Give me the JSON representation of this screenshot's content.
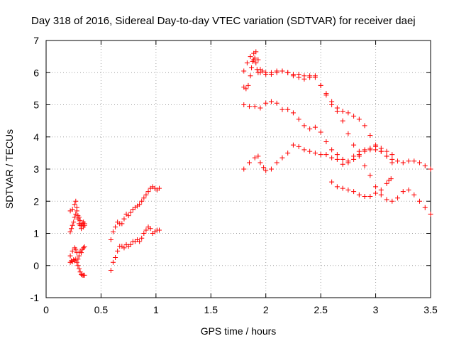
{
  "chart_data": {
    "type": "scatter",
    "title": "Day 318 of 2016, Sidereal Day-to-day VTEC variation (SDTVAR) for receiver daej",
    "xlabel": "GPS time / hours",
    "ylabel": "SDTVAR / TECUs",
    "xlim": [
      0,
      3.5
    ],
    "ylim": [
      -1,
      7
    ],
    "x_ticks": [
      "0",
      "0.5",
      "1",
      "1.5",
      "2",
      "2.5",
      "3",
      "3.5"
    ],
    "y_ticks": [
      "-1",
      "0",
      "1",
      "2",
      "3",
      "4",
      "5",
      "6",
      "7"
    ],
    "grid": true,
    "marker": "+",
    "color": "#ff0000",
    "series": [
      {
        "name": "segment-a1",
        "x": [
          0.22,
          0.24,
          0.26,
          0.27,
          0.28,
          0.29,
          0.3,
          0.31,
          0.32,
          0.33,
          0.34,
          0.35
        ],
        "y": [
          1.7,
          1.75,
          1.9,
          2.0,
          1.8,
          1.55,
          1.5,
          1.4,
          1.25,
          1.3,
          1.35,
          1.3
        ]
      },
      {
        "name": "segment-a2",
        "x": [
          0.22,
          0.23,
          0.24,
          0.25,
          0.26,
          0.27,
          0.28,
          0.29,
          0.3,
          0.31,
          0.32,
          0.33,
          0.34,
          0.35
        ],
        "y": [
          1.05,
          1.15,
          1.25,
          1.35,
          1.5,
          1.6,
          1.7,
          1.45,
          1.3,
          1.25,
          1.15,
          1.3,
          1.2,
          1.25
        ]
      },
      {
        "name": "segment-a3",
        "x": [
          0.22,
          0.24,
          0.26,
          0.27,
          0.28,
          0.29,
          0.3,
          0.31,
          0.32,
          0.33,
          0.34,
          0.35
        ],
        "y": [
          0.3,
          0.45,
          0.55,
          0.5,
          0.4,
          0.2,
          0.3,
          0.45,
          0.4,
          0.5,
          0.55,
          0.58
        ]
      },
      {
        "name": "segment-a4",
        "x": [
          0.22,
          0.23,
          0.24,
          0.25,
          0.26,
          0.27,
          0.28,
          0.29,
          0.3,
          0.31,
          0.32,
          0.33,
          0.34,
          0.35
        ],
        "y": [
          0.1,
          0.15,
          0.12,
          0.18,
          0.15,
          0.2,
          0.1,
          0.0,
          -0.1,
          -0.2,
          -0.28,
          -0.3,
          -0.3,
          -0.3
        ]
      },
      {
        "name": "segment-b1",
        "x": [
          0.59,
          0.61,
          0.63,
          0.65,
          0.67,
          0.69,
          0.71,
          0.73,
          0.75,
          0.77,
          0.79,
          0.81,
          0.83,
          0.85,
          0.87,
          0.89,
          0.91,
          0.93,
          0.95,
          0.97,
          0.99,
          1.01,
          1.03
        ],
        "y": [
          0.8,
          1.05,
          1.2,
          1.35,
          1.3,
          1.3,
          1.45,
          1.6,
          1.55,
          1.65,
          1.75,
          1.8,
          1.85,
          1.9,
          2.0,
          2.1,
          2.2,
          2.3,
          2.4,
          2.45,
          2.4,
          2.35,
          2.4
        ]
      },
      {
        "name": "segment-b2",
        "x": [
          0.59,
          0.61,
          0.63,
          0.65,
          0.67,
          0.69,
          0.71,
          0.73,
          0.75,
          0.77,
          0.79,
          0.81,
          0.83,
          0.85,
          0.87,
          0.89,
          0.91,
          0.93,
          0.95,
          0.97,
          0.99,
          1.01,
          1.03
        ],
        "y": [
          -0.15,
          0.1,
          0.25,
          0.45,
          0.6,
          0.6,
          0.55,
          0.65,
          0.6,
          0.65,
          0.75,
          0.75,
          0.8,
          0.75,
          0.85,
          1.0,
          1.1,
          1.2,
          1.15,
          1.0,
          1.05,
          1.1,
          1.1
        ]
      },
      {
        "name": "series-1",
        "x": [
          1.8,
          1.83,
          1.86,
          1.89,
          1.91,
          1.93,
          1.95,
          1.97,
          2.0,
          2.05,
          2.1,
          2.15,
          2.2,
          2.25,
          2.3,
          2.35,
          2.4,
          2.45,
          2.5,
          2.55,
          2.6,
          2.65,
          2.7,
          2.75,
          2.8,
          2.85,
          2.9,
          2.95,
          3.0,
          3.05,
          3.1,
          3.15,
          3.2,
          3.25,
          3.3,
          3.35,
          3.4,
          3.45,
          3.5
        ],
        "y": [
          6.05,
          6.3,
          6.5,
          6.6,
          6.65,
          6.4,
          6.1,
          6.05,
          6.0,
          6.0,
          6.05,
          6.05,
          6.0,
          5.95,
          5.95,
          5.9,
          5.9,
          5.85,
          5.6,
          5.35,
          5.1,
          4.9,
          4.8,
          4.75,
          4.65,
          4.55,
          4.35,
          4.05,
          3.75,
          3.55,
          3.4,
          3.3,
          3.25,
          3.2,
          3.25,
          3.25,
          3.2,
          3.1,
          3.0
        ]
      },
      {
        "name": "series-2",
        "x": [
          1.8,
          1.82,
          1.84,
          1.86,
          1.87,
          1.88,
          1.89,
          1.9,
          1.91,
          1.92,
          1.93,
          1.95,
          2.0,
          2.05,
          2.1,
          2.15,
          2.2,
          2.25,
          2.3,
          2.35,
          2.4,
          2.45,
          2.5,
          2.55,
          2.6,
          2.65,
          2.7,
          2.75,
          2.8,
          2.85,
          2.9,
          2.95,
          3.0,
          3.05,
          3.1,
          3.15,
          3.2,
          3.25,
          3.3,
          3.35,
          3.4,
          3.45,
          3.5
        ],
        "y": [
          5.55,
          5.5,
          5.6,
          5.9,
          6.15,
          6.35,
          6.4,
          6.45,
          6.3,
          6.1,
          6.0,
          6.0,
          5.95,
          5.95,
          6.0,
          6.05,
          6.0,
          5.9,
          5.85,
          5.8,
          5.85,
          5.9,
          5.6,
          5.3,
          5.0,
          4.8,
          4.5,
          4.1,
          3.75,
          3.4,
          3.1,
          2.8,
          2.45,
          2.2,
          2.05,
          2.0,
          2.1,
          2.3,
          2.35,
          2.2,
          2.0,
          1.8,
          1.6
        ]
      },
      {
        "name": "series-3",
        "x": [
          1.8,
          1.85,
          1.9,
          1.95,
          2.0,
          2.05,
          2.1,
          2.15,
          2.2,
          2.25,
          2.3,
          2.35,
          2.4,
          2.45,
          2.5,
          2.55,
          2.6,
          2.65,
          2.7,
          2.75,
          2.8,
          2.85,
          2.9,
          2.95,
          3.0,
          3.05,
          3.1,
          3.15
        ],
        "y": [
          5.0,
          4.95,
          4.95,
          4.9,
          5.05,
          5.1,
          5.05,
          4.85,
          4.85,
          4.75,
          4.55,
          4.35,
          4.25,
          4.3,
          4.15,
          3.85,
          3.6,
          3.45,
          3.3,
          3.2,
          3.3,
          3.45,
          3.55,
          3.6,
          3.6,
          3.55,
          3.4,
          3.2
        ]
      },
      {
        "name": "series-4",
        "x": [
          1.8,
          1.85,
          1.9,
          1.93,
          1.95,
          1.98,
          2.0,
          2.05,
          2.1,
          2.15,
          2.2,
          2.25,
          2.3,
          2.35,
          2.4,
          2.45,
          2.5,
          2.55,
          2.6,
          2.65,
          2.7,
          2.75,
          2.8,
          2.85,
          2.9,
          2.95,
          3.0,
          3.05,
          3.1,
          3.15
        ],
        "y": [
          3.0,
          3.2,
          3.35,
          3.4,
          3.2,
          3.05,
          2.95,
          3.0,
          3.2,
          3.35,
          3.5,
          3.75,
          3.7,
          3.6,
          3.55,
          3.5,
          3.45,
          3.45,
          3.35,
          3.3,
          3.15,
          3.25,
          3.4,
          3.55,
          3.6,
          3.65,
          3.7,
          3.65,
          3.55,
          3.45
        ]
      },
      {
        "name": "series-5",
        "x": [
          2.6,
          2.65,
          2.7,
          2.75,
          2.8,
          2.85,
          2.9,
          2.95,
          3.0,
          3.05,
          3.1,
          3.12,
          3.14
        ],
        "y": [
          2.6,
          2.45,
          2.4,
          2.35,
          2.3,
          2.2,
          2.15,
          2.15,
          2.25,
          2.35,
          2.55,
          2.65,
          2.7
        ]
      }
    ]
  }
}
